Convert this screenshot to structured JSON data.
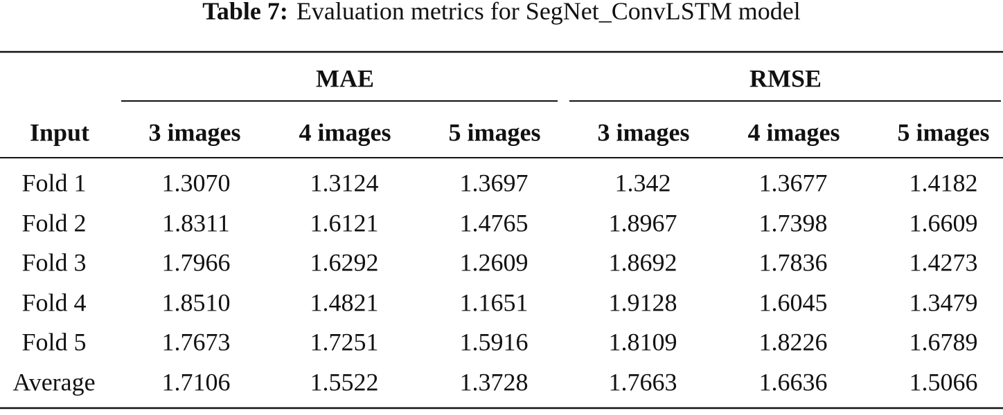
{
  "table": {
    "caption_label": "Table 7:",
    "caption": "Evaluation metrics for SegNet_ConvLSTM model",
    "groups": [
      "MAE",
      "RMSE"
    ],
    "columns": [
      "Input",
      "3 images",
      "4 images",
      "5 images",
      "3 images",
      "4 images",
      "5 images"
    ],
    "rows": [
      [
        "Fold 1",
        "1.3070",
        "1.3124",
        "1.3697",
        "1.342",
        "1.3677",
        "1.4182"
      ],
      [
        "Fold 2",
        "1.8311",
        "1.6121",
        "1.4765",
        "1.8967",
        "1.7398",
        "1.6609"
      ],
      [
        "Fold 3",
        "1.7966",
        "1.6292",
        "1.2609",
        "1.8692",
        "1.7836",
        "1.4273"
      ],
      [
        "Fold 4",
        "1.8510",
        "1.4821",
        "1.1651",
        "1.9128",
        "1.6045",
        "1.3479"
      ],
      [
        "Fold 5",
        "1.7673",
        "1.7251",
        "1.5916",
        "1.8109",
        "1.8226",
        "1.6789"
      ],
      [
        "Average",
        "1.7106",
        "1.5522",
        "1.3728",
        "1.7663",
        "1.6636",
        "1.5066"
      ]
    ]
  }
}
